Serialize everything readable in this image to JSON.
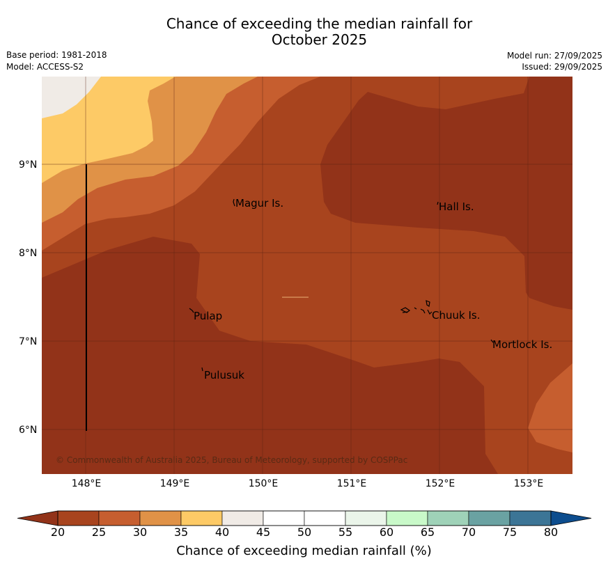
{
  "header": {
    "title_line1": "Chance of exceeding the median rainfall for",
    "title_line2": "October 2025",
    "base_period": "Base period: 1981-2018",
    "model": "Model: ACCESS-S2",
    "model_run": "Model run: 27/09/2025",
    "issued": "Issued: 29/09/2025"
  },
  "map": {
    "lat_labels": [
      "9°N",
      "8°N",
      "7°N",
      "6°N"
    ],
    "lon_labels": [
      "148°E",
      "149°E",
      "150°E",
      "151°E",
      "152°E",
      "153°E"
    ],
    "places": [
      "Magur Is.",
      "Hall Is.",
      "Pulap",
      "Chuuk Is.",
      "Mortlock Is.",
      "Pulusuk"
    ],
    "copyright": "© Commonwealth of Australia 2025, Bureau of Meteorology, supported by COSPPac"
  },
  "colorbar": {
    "ticks": [
      "20",
      "25",
      "30",
      "35",
      "40",
      "45",
      "50",
      "55",
      "60",
      "65",
      "70",
      "75",
      "80"
    ],
    "label": "Chance of exceeding median rainfall (%)",
    "colors": [
      "#a8441e",
      "#c65e2f",
      "#e09247",
      "#fdca66",
      "#f0ebe6",
      "#ffffff",
      "#ffffff",
      "#ebf5ea",
      "#c9f9c9",
      "#9fd2b8",
      "#6aa2a2",
      "#3c7596"
    ],
    "under_color": "#923319",
    "over_color": "#0d4d8e"
  },
  "palette": {
    "c20": "#923319",
    "c25": "#a8441e",
    "c30": "#c65e2f",
    "c35": "#e09247",
    "c40": "#fdca66",
    "c45": "#f0ebe6"
  }
}
